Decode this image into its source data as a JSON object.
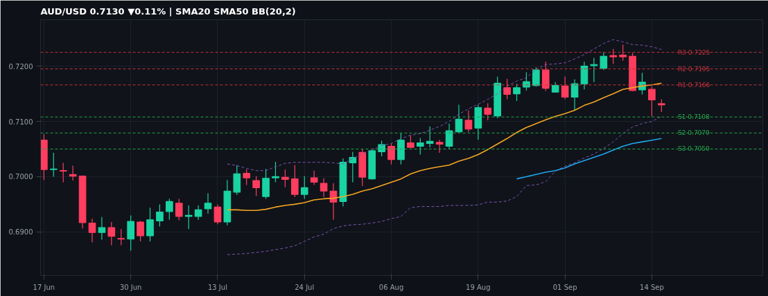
{
  "chart_data": {
    "type": "candlestick",
    "title": "AUD/USD  0.7130  ▼0.11%  |  SMA20  SMA50  BB(20,2)",
    "categories": [
      "17 Jun",
      null,
      null,
      null,
      null,
      null,
      null,
      null,
      null,
      "30 Jun",
      null,
      null,
      null,
      null,
      null,
      null,
      null,
      null,
      "13 Jul",
      null,
      null,
      null,
      null,
      null,
      null,
      null,
      null,
      "24 Jul",
      null,
      null,
      null,
      null,
      null,
      null,
      null,
      null,
      "06 Aug",
      null,
      null,
      null,
      null,
      null,
      null,
      null,
      null,
      "19 Aug",
      null,
      null,
      null,
      null,
      null,
      null,
      null,
      null,
      "01 Sep",
      null,
      null,
      null,
      null,
      null,
      null,
      null,
      null,
      "14 Sep",
      null
    ],
    "ohlc": [
      [
        0.7066,
        0.7077,
        0.6994,
        0.7013
      ],
      [
        0.7013,
        0.7043,
        0.7,
        0.7014
      ],
      [
        0.7011,
        0.7025,
        0.699,
        0.701
      ],
      [
        0.7004,
        0.702,
        0.6993,
        0.7001
      ],
      [
        0.7001,
        0.7002,
        0.6906,
        0.6917
      ],
      [
        0.6916,
        0.6924,
        0.6881,
        0.6899
      ],
      [
        0.6899,
        0.6927,
        0.6886,
        0.6908
      ],
      [
        0.6908,
        0.6918,
        0.6876,
        0.6892
      ],
      [
        0.6888,
        0.6905,
        0.6876,
        0.6887
      ],
      [
        0.6887,
        0.693,
        0.6866,
        0.6919
      ],
      [
        0.6918,
        0.692,
        0.6883,
        0.6893
      ],
      [
        0.6893,
        0.6944,
        0.6883,
        0.6922
      ],
      [
        0.692,
        0.695,
        0.691,
        0.6936
      ],
      [
        0.6937,
        0.696,
        0.6922,
        0.6955
      ],
      [
        0.6952,
        0.696,
        0.6921,
        0.6928
      ],
      [
        0.6928,
        0.6948,
        0.6905,
        0.693
      ],
      [
        0.6928,
        0.6948,
        0.6922,
        0.694
      ],
      [
        0.6942,
        0.697,
        0.6933,
        0.6952
      ],
      [
        0.6945,
        0.695,
        0.6914,
        0.6918
      ],
      [
        0.6918,
        0.6994,
        0.6912,
        0.6974
      ],
      [
        0.6972,
        0.7021,
        0.6967,
        0.7005
      ],
      [
        0.7006,
        0.7013,
        0.6985,
        0.6998
      ],
      [
        0.6993,
        0.7001,
        0.6965,
        0.698
      ],
      [
        0.6964,
        0.7014,
        0.696,
        0.6997
      ],
      [
        0.6998,
        0.7027,
        0.699,
        0.7
      ],
      [
        0.6999,
        0.7013,
        0.6981,
        0.6995
      ],
      [
        0.6996,
        0.7021,
        0.6963,
        0.6968
      ],
      [
        0.6968,
        0.7001,
        0.696,
        0.698
      ],
      [
        0.6998,
        0.7011,
        0.6985,
        0.699
      ],
      [
        0.6988,
        0.6997,
        0.6963,
        0.6974
      ],
      [
        0.6974,
        0.6988,
        0.6922,
        0.6954
      ],
      [
        0.6955,
        0.7033,
        0.6946,
        0.7026
      ],
      [
        0.7025,
        0.7045,
        0.699,
        0.7035
      ],
      [
        0.7044,
        0.705,
        0.6983,
        0.6999
      ],
      [
        0.6996,
        0.7048,
        0.6995,
        0.7047
      ],
      [
        0.7045,
        0.7065,
        0.7037,
        0.7058
      ],
      [
        0.7055,
        0.706,
        0.7022,
        0.7031
      ],
      [
        0.7031,
        0.7078,
        0.7022,
        0.7066
      ],
      [
        0.7061,
        0.7075,
        0.7052,
        0.7053
      ],
      [
        0.7055,
        0.707,
        0.704,
        0.7061
      ],
      [
        0.706,
        0.7091,
        0.7053,
        0.7064
      ],
      [
        0.7062,
        0.7067,
        0.7043,
        0.7059
      ],
      [
        0.7055,
        0.7096,
        0.7051,
        0.7083
      ],
      [
        0.7081,
        0.713,
        0.708,
        0.7104
      ],
      [
        0.7102,
        0.712,
        0.7081,
        0.7086
      ],
      [
        0.7088,
        0.713,
        0.7067,
        0.7125
      ],
      [
        0.7124,
        0.7133,
        0.7102,
        0.7113
      ],
      [
        0.711,
        0.7181,
        0.7106,
        0.7169
      ],
      [
        0.7161,
        0.7177,
        0.714,
        0.7149
      ],
      [
        0.715,
        0.7168,
        0.7137,
        0.7161
      ],
      [
        0.7162,
        0.7189,
        0.7156,
        0.7172
      ],
      [
        0.7165,
        0.7198,
        0.7163,
        0.7193
      ],
      [
        0.7193,
        0.7208,
        0.7155,
        0.716
      ],
      [
        0.7153,
        0.7171,
        0.7152,
        0.7165
      ],
      [
        0.7164,
        0.7181,
        0.714,
        0.7144
      ],
      [
        0.7144,
        0.7176,
        0.712,
        0.7168
      ],
      [
        0.7168,
        0.7208,
        0.7158,
        0.72
      ],
      [
        0.7201,
        0.7215,
        0.7171,
        0.7203
      ],
      [
        0.7196,
        0.7225,
        0.7193,
        0.7218
      ],
      [
        0.7219,
        0.7231,
        0.7204,
        0.7217
      ],
      [
        0.722,
        0.7239,
        0.721,
        0.7217
      ],
      [
        0.7218,
        0.7224,
        0.7155,
        0.7156
      ],
      [
        0.7157,
        0.7188,
        0.7149,
        0.7171
      ],
      [
        0.7158,
        0.7163,
        0.7109,
        0.7139
      ],
      [
        0.7132,
        0.714,
        0.7117,
        0.713
      ]
    ],
    "colors": [
      "#ff3d5e",
      "#19d3a2",
      "#ff3d5e",
      "#ff3d5e",
      "#ff3d5e",
      "#ff3d5e",
      "#19d3a2",
      "#ff3d5e",
      "#ff3d5e",
      "#19d3a2",
      "#ff3d5e",
      "#19d3a2",
      "#19d3a2",
      "#19d3a2",
      "#ff3d5e",
      "#19d3a2",
      "#19d3a2",
      "#19d3a2",
      "#ff3d5e",
      "#19d3a2",
      "#19d3a2",
      "#ff3d5e",
      "#ff3d5e",
      "#19d3a2",
      "#19d3a2",
      "#ff3d5e",
      "#ff3d5e",
      "#19d3a2",
      "#ff3d5e",
      "#ff3d5e",
      "#ff3d5e",
      "#19d3a2",
      "#19d3a2",
      "#ff3d5e",
      "#19d3a2",
      "#19d3a2",
      "#ff3d5e",
      "#19d3a2",
      "#ff3d5e",
      "#19d3a2",
      "#19d3a2",
      "#ff3d5e",
      "#19d3a2",
      "#19d3a2",
      "#ff3d5e",
      "#19d3a2",
      "#ff3d5e",
      "#19d3a2",
      "#ff3d5e",
      "#19d3a2",
      "#19d3a2",
      "#19d3a2",
      "#ff3d5e",
      "#19d3a2",
      "#ff3d5e",
      "#19d3a2",
      "#19d3a2",
      "#19d3a2",
      "#19d3a2",
      "#ff3d5e",
      "#ff3d5e",
      "#ff3d5e",
      "#19d3a2",
      "#ff3d5e",
      "#ff3d5e"
    ],
    "series": [
      {
        "type": "line",
        "color": "#f5a623",
        "values": [
          null,
          null,
          null,
          null,
          null,
          null,
          null,
          null,
          null,
          null,
          null,
          null,
          null,
          null,
          null,
          null,
          null,
          null,
          null,
          0.694,
          0.694,
          0.6939,
          0.6939,
          0.6941,
          0.6945,
          0.6948,
          0.695,
          0.6953,
          0.6958,
          0.696,
          0.6961,
          0.6964,
          0.6968,
          0.6974,
          0.6978,
          0.6984,
          0.699,
          0.6996,
          0.7005,
          0.7011,
          0.7015,
          0.7018,
          0.7021,
          0.7028,
          0.7033,
          0.704,
          0.7049,
          0.7059,
          0.7069,
          0.708,
          0.7089,
          0.7096,
          0.7103,
          0.7109,
          0.7114,
          0.712,
          0.7129,
          0.7135,
          0.7143,
          0.715,
          0.7158,
          0.7161,
          0.7164,
          0.7166,
          0.7169
        ]
      },
      {
        "type": "line",
        "color": "#7d55b0",
        "line_style": "dashed",
        "values": [
          null,
          null,
          null,
          null,
          null,
          null,
          null,
          null,
          null,
          null,
          null,
          null,
          null,
          null,
          null,
          null,
          null,
          null,
          null,
          0.7023,
          0.702,
          0.7015,
          0.7011,
          0.7011,
          0.7018,
          0.7024,
          0.7026,
          0.7026,
          0.7026,
          0.7026,
          0.7025,
          0.7023,
          0.7033,
          0.7041,
          0.7049,
          0.7056,
          0.706,
          0.7069,
          0.7075,
          0.7078,
          0.7084,
          0.7091,
          0.71,
          0.7113,
          0.7123,
          0.7131,
          0.714,
          0.715,
          0.7164,
          0.7173,
          0.7179,
          0.7194,
          0.7203,
          0.7204,
          0.7206,
          0.7213,
          0.7221,
          0.7231,
          0.7241,
          0.7248,
          0.7244,
          0.7239,
          0.7238,
          0.7235,
          0.723
        ]
      },
      {
        "type": "line",
        "color": "#7d55b0",
        "line_style": "dashed",
        "values": [
          null,
          null,
          null,
          null,
          null,
          null,
          null,
          null,
          null,
          null,
          null,
          null,
          null,
          null,
          null,
          null,
          null,
          null,
          null,
          0.6859,
          0.686,
          0.6861,
          0.6863,
          0.6865,
          0.6868,
          0.6871,
          0.6875,
          0.6883,
          0.6891,
          0.6896,
          0.6906,
          0.6911,
          0.6913,
          0.6914,
          0.6916,
          0.6919,
          0.6924,
          0.6928,
          0.6944,
          0.6946,
          0.6946,
          0.6946,
          0.6948,
          0.6948,
          0.6948,
          0.6949,
          0.6954,
          0.6954,
          0.6956,
          0.6964,
          0.6984,
          0.6985,
          0.6991,
          0.701,
          0.7019,
          0.7025,
          0.7034,
          0.7041,
          0.7051,
          0.7063,
          0.7078,
          0.709,
          0.7096,
          0.71,
          0.7109
        ]
      },
      {
        "type": "line",
        "color": "#1ea7f0",
        "values": [
          null,
          null,
          null,
          null,
          null,
          null,
          null,
          null,
          null,
          null,
          null,
          null,
          null,
          null,
          null,
          null,
          null,
          null,
          null,
          null,
          null,
          null,
          null,
          null,
          null,
          null,
          null,
          null,
          null,
          null,
          null,
          null,
          null,
          null,
          null,
          null,
          null,
          null,
          null,
          null,
          null,
          null,
          null,
          null,
          null,
          null,
          null,
          null,
          null,
          0.6996,
          0.7,
          0.7004,
          0.7008,
          0.7011,
          0.7016,
          0.7023,
          0.7029,
          0.7035,
          0.7041,
          0.7048,
          0.7055,
          0.706,
          0.7063,
          0.7066,
          0.7069
        ]
      }
    ],
    "ylim": [
      0.6821,
      0.7284
    ],
    "yticks": [
      {
        "value": 0.69,
        "label": "0.6900"
      },
      {
        "value": 0.7,
        "label": "0.7000"
      },
      {
        "value": 0.71,
        "label": "0.7100"
      },
      {
        "value": 0.72,
        "label": "0.7200"
      }
    ],
    "ref_lines": [
      {
        "axis": "y",
        "value": 0.7225,
        "label": "R3 0.7225",
        "color": "#c8323c",
        "line_style": "dashed"
      },
      {
        "axis": "y",
        "value": 0.7195,
        "label": "R2 0.7195",
        "color": "#c8323c",
        "line_style": "dashed"
      },
      {
        "axis": "y",
        "value": 0.7166,
        "label": "R1 0.7166",
        "color": "#c8323c",
        "line_style": "dashed"
      },
      {
        "axis": "y",
        "value": 0.7108,
        "label": "S1 0.7108",
        "color": "#22a84a",
        "line_style": "dashed"
      },
      {
        "axis": "y",
        "value": 0.7079,
        "label": "S2 0.7079",
        "color": "#22a84a",
        "line_style": "dashed"
      },
      {
        "axis": "y",
        "value": 0.705,
        "label": "S3 0.7050",
        "color": "#22a84a",
        "line_style": "dashed"
      }
    ],
    "grid": true
  }
}
